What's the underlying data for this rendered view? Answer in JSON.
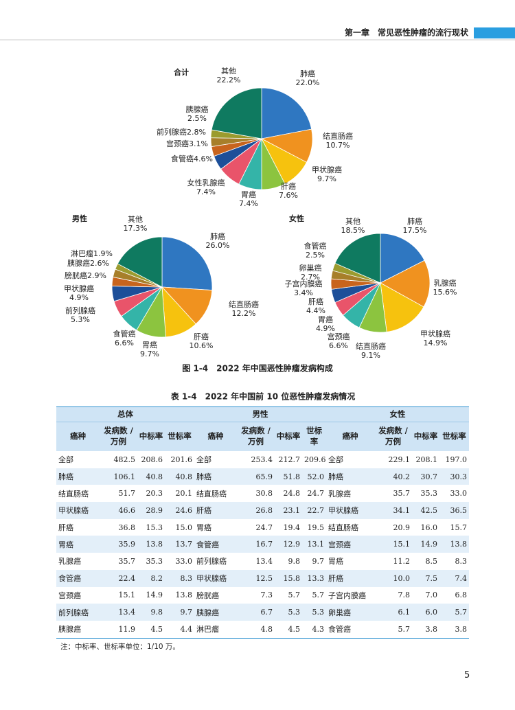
{
  "header": {
    "chapter": "第一章　常见恶性肿瘤的流行现状"
  },
  "chart_data": [
    {
      "type": "pie",
      "title": "合计",
      "categories": [
        "肺癌",
        "结直肠癌",
        "甲状腺癌",
        "肝癌",
        "胃癌",
        "女性乳腺癌",
        "食管癌",
        "宫颈癌",
        "前列腺癌",
        "胰腺癌",
        "其他"
      ],
      "values": [
        22.0,
        10.7,
        9.7,
        7.6,
        7.4,
        7.4,
        4.6,
        3.1,
        2.8,
        2.5,
        22.2
      ],
      "value_labels": [
        "22.0%",
        "10.7%",
        "9.7%",
        "7.6%",
        "7.4%",
        "7.4%",
        "4.6%",
        "3.1%",
        "2.8%",
        "2.5%",
        "22.2%"
      ],
      "colors": [
        "#2f77c1",
        "#f0921f",
        "#f6c20e",
        "#8cc43f",
        "#34b4a8",
        "#e9546a",
        "#1d4f99",
        "#c8641d",
        "#a77f2a",
        "#9b9b2e",
        "#0f7a60"
      ]
    },
    {
      "type": "pie",
      "title": "男性",
      "categories": [
        "肺癌",
        "结直肠癌",
        "肝癌",
        "胃癌",
        "食管癌",
        "前列腺癌",
        "甲状腺癌",
        "膀胱癌",
        "胰腺癌",
        "淋巴瘤",
        "其他"
      ],
      "values": [
        26.0,
        12.2,
        10.6,
        9.7,
        6.6,
        5.3,
        4.9,
        2.9,
        2.6,
        1.9,
        17.3
      ],
      "value_labels": [
        "26.0%",
        "12.2%",
        "10.6%",
        "9.7%",
        "6.6%",
        "5.3%",
        "4.9%",
        "2.9%",
        "2.6%",
        "1.9%",
        "17.3%"
      ],
      "colors": [
        "#2f77c1",
        "#f0921f",
        "#f6c20e",
        "#8cc43f",
        "#34b4a8",
        "#e9546a",
        "#1d4f99",
        "#c8641d",
        "#a77f2a",
        "#9b9b2e",
        "#0f7a60"
      ]
    },
    {
      "type": "pie",
      "title": "女性",
      "categories": [
        "肺癌",
        "乳腺癌",
        "甲状腺癌",
        "结直肠癌",
        "宫颈癌",
        "胃癌",
        "肝癌",
        "子宫内膜癌",
        "卵巢癌",
        "食管癌",
        "其他"
      ],
      "values": [
        17.5,
        15.6,
        14.9,
        9.1,
        6.6,
        4.9,
        4.4,
        3.4,
        2.7,
        2.5,
        18.5
      ],
      "value_labels": [
        "17.5%",
        "15.6%",
        "14.9%",
        "9.1%",
        "6.6%",
        "4.9%",
        "4.4%",
        "3.4%",
        "2.7%",
        "2.5%",
        "18.5%"
      ],
      "colors": [
        "#2f77c1",
        "#f0921f",
        "#f6c20e",
        "#8cc43f",
        "#34b4a8",
        "#e9546a",
        "#1d4f99",
        "#c8641d",
        "#a77f2a",
        "#9b9b2e",
        "#0f7a60"
      ]
    }
  ],
  "figure_caption": "图 1-4　2022 年中国恶性肿瘤发病构成",
  "table": {
    "caption": "表 1-4　2022 年中国前 10 位恶性肿瘤发病情况",
    "groups": [
      "总体",
      "男性",
      "女性"
    ],
    "columns": [
      "癌种",
      "发病数 / 万例",
      "中标率",
      "世标率",
      "癌种",
      "发病数 / 万例",
      "中标率",
      "世标率",
      "癌种",
      "发病数 / 万例",
      "中标率",
      "世标率"
    ],
    "rows": [
      [
        "全部",
        "482.5",
        "208.6",
        "201.6",
        "全部",
        "253.4",
        "212.7",
        "209.6",
        "全部",
        "229.1",
        "208.1",
        "197.0"
      ],
      [
        "肺癌",
        "106.1",
        "40.8",
        "40.8",
        "肺癌",
        "65.9",
        "51.8",
        "52.0",
        "肺癌",
        "40.2",
        "30.7",
        "30.3"
      ],
      [
        "结直肠癌",
        "51.7",
        "20.3",
        "20.1",
        "结直肠癌",
        "30.8",
        "24.8",
        "24.7",
        "乳腺癌",
        "35.7",
        "35.3",
        "33.0"
      ],
      [
        "甲状腺癌",
        "46.6",
        "28.9",
        "24.6",
        "肝癌",
        "26.8",
        "23.1",
        "22.7",
        "甲状腺癌",
        "34.1",
        "42.5",
        "36.5"
      ],
      [
        "肝癌",
        "36.8",
        "15.3",
        "15.0",
        "胃癌",
        "24.7",
        "19.4",
        "19.5",
        "结直肠癌",
        "20.9",
        "16.0",
        "15.7"
      ],
      [
        "胃癌",
        "35.9",
        "13.8",
        "13.7",
        "食管癌",
        "16.7",
        "12.9",
        "13.1",
        "宫颈癌",
        "15.1",
        "14.9",
        "13.8"
      ],
      [
        "乳腺癌",
        "35.7",
        "35.3",
        "33.0",
        "前列腺癌",
        "13.4",
        "9.8",
        "9.7",
        "胃癌",
        "11.2",
        "8.5",
        "8.3"
      ],
      [
        "食管癌",
        "22.4",
        "8.2",
        "8.3",
        "甲状腺癌",
        "12.5",
        "15.8",
        "13.3",
        "肝癌",
        "10.0",
        "7.5",
        "7.4"
      ],
      [
        "宫颈癌",
        "15.1",
        "14.9",
        "13.8",
        "膀胱癌",
        "7.3",
        "5.7",
        "5.7",
        "子宫内膜癌",
        "7.8",
        "7.0",
        "6.8"
      ],
      [
        "前列腺癌",
        "13.4",
        "9.8",
        "9.7",
        "胰腺癌",
        "6.7",
        "5.3",
        "5.3",
        "卵巢癌",
        "6.1",
        "6.0",
        "5.7"
      ],
      [
        "胰腺癌",
        "11.9",
        "4.5",
        "4.4",
        "淋巴瘤",
        "4.8",
        "4.5",
        "4.3",
        "食管癌",
        "5.7",
        "3.8",
        "3.8"
      ]
    ],
    "note": "注：中标率、世标率单位：1/10 万。"
  },
  "page_number": "5"
}
